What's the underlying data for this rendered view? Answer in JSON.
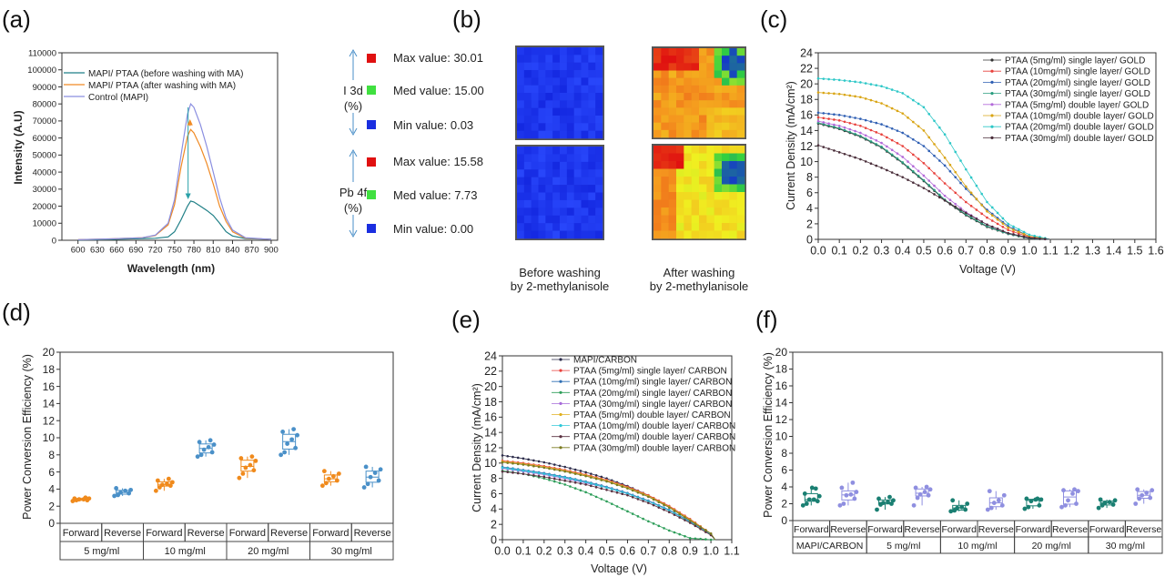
{
  "figure": {
    "panel_labels": [
      "(a)",
      "(b)",
      "(c)",
      "(d)",
      "(e)",
      "(f)"
    ]
  },
  "chart_data": [
    {
      "panel": "(a)",
      "type": "line",
      "xlabel": "Wavelength (nm)",
      "ylabel": "Intensity (A.U)",
      "xlim": [
        575,
        910
      ],
      "ylim": [
        0,
        110000
      ],
      "xticks": [
        600,
        630,
        660,
        690,
        720,
        750,
        780,
        810,
        840,
        870,
        900
      ],
      "yticks": [
        0,
        10000,
        20000,
        30000,
        40000,
        50000,
        60000,
        70000,
        80000,
        90000,
        100000,
        110000
      ],
      "x": [
        600,
        650,
        700,
        720,
        740,
        750,
        760,
        770,
        775,
        780,
        790,
        800,
        810,
        820,
        830,
        840,
        860,
        880,
        900
      ],
      "series": [
        {
          "name": "MAPI/ PTAA (before washing with MA)",
          "color": "#1f7f86",
          "values": [
            200,
            500,
            1000,
            1200,
            2000,
            5000,
            12000,
            20000,
            23000,
            22500,
            20000,
            17500,
            14500,
            10000,
            5000,
            2500,
            1000,
            800,
            600
          ]
        },
        {
          "name": "MAPI/ PTAA (after washing with MA)",
          "color": "#f08a24",
          "values": [
            300,
            800,
            1500,
            2800,
            9000,
            21000,
            43000,
            61000,
            65000,
            63000,
            55000,
            45000,
            33000,
            20000,
            11000,
            5000,
            1300,
            900,
            500
          ]
        },
        {
          "name": "Control (MAPI)",
          "color": "#8a8ee0",
          "values": [
            300,
            800,
            1500,
            3000,
            10000,
            24000,
            50000,
            74000,
            80000,
            78000,
            68000,
            55000,
            40000,
            25000,
            13000,
            6000,
            1500,
            1000,
            500
          ]
        }
      ],
      "legend": "top-left"
    },
    {
      "panel": "(b)",
      "type": "heatmap",
      "groups": [
        {
          "label_line1": "I 3d",
          "label_line2": "(%)",
          "max": "Max value: 30.01",
          "med": "Med value: 15.00",
          "min": "Min value: 0.03"
        },
        {
          "label_line1": "Pb 4f",
          "label_line2": "(%)",
          "max": "Max value: 15.58",
          "med": "Med value: 7.73",
          "min": "Min value: 0.00"
        }
      ],
      "colors": {
        "max": "#e01010",
        "med": "#40e040",
        "min": "#1a2ee0"
      },
      "columns": [
        {
          "line1": "Before washing",
          "line2": "by 2-methylanisole"
        },
        {
          "line1": "After washing",
          "line2": "by 2-methylanisole"
        }
      ]
    },
    {
      "panel": "(c)",
      "type": "line",
      "xlabel": "Voltage (V)",
      "ylabel": "Current Density (mA/cm²)",
      "xlim": [
        0,
        1.6
      ],
      "ylim": [
        0,
        24
      ],
      "xticks": [
        0.0,
        0.1,
        0.2,
        0.3,
        0.4,
        0.5,
        0.6,
        0.7,
        0.8,
        0.9,
        1.0,
        1.1,
        1.2,
        1.3,
        1.4,
        1.5,
        1.6
      ],
      "yticks": [
        0,
        2,
        4,
        6,
        8,
        10,
        12,
        14,
        16,
        18,
        20,
        22,
        24
      ],
      "x": [
        0,
        0.1,
        0.2,
        0.3,
        0.4,
        0.5,
        0.6,
        0.7,
        0.8,
        0.9,
        1.0,
        1.1
      ],
      "series": [
        {
          "name": "PTAA (5mg/ml) single layer/ GOLD",
          "color": "#333333",
          "values": [
            14.9,
            14.2,
            13.2,
            11.8,
            9.8,
            7.5,
            5.0,
            3.1,
            1.6,
            0.7,
            0.1,
            0
          ]
        },
        {
          "name": "PTAA (10mg/ml) single layer/ GOLD",
          "color": "#e8413c",
          "values": [
            15.7,
            15.3,
            14.6,
            13.5,
            12.0,
            9.8,
            7.2,
            4.8,
            2.8,
            1.2,
            0.3,
            0
          ]
        },
        {
          "name": "PTAA (20mg/ml) single layer/ GOLD",
          "color": "#2f5fb3",
          "values": [
            16.3,
            16.0,
            15.5,
            14.8,
            13.7,
            12.0,
            9.5,
            6.5,
            3.8,
            1.7,
            0.4,
            0
          ]
        },
        {
          "name": "PTAA (30mg/ml) single layer/ GOLD",
          "color": "#2a9d7f",
          "values": [
            15.0,
            14.3,
            13.3,
            11.9,
            9.9,
            7.6,
            5.1,
            3.2,
            1.7,
            0.7,
            0.15,
            0
          ]
        },
        {
          "name": "PTAA (5mg/ml) double layer/ GOLD",
          "color": "#b36ad9",
          "values": [
            15.2,
            14.6,
            13.7,
            12.4,
            10.6,
            8.2,
            5.6,
            3.5,
            1.9,
            0.8,
            0.2,
            0
          ]
        },
        {
          "name": "PTAA (10mg/ml) double layer/ GOLD",
          "color": "#d9a514",
          "values": [
            18.9,
            18.7,
            18.3,
            17.5,
            16.2,
            14.0,
            10.5,
            6.8,
            3.6,
            1.5,
            0.4,
            0
          ]
        },
        {
          "name": "PTAA (20mg/ml) double layer/ GOLD",
          "color": "#2cc7c7",
          "values": [
            20.7,
            20.5,
            20.2,
            19.7,
            18.8,
            17.0,
            13.5,
            9.0,
            4.8,
            2.0,
            0.6,
            0
          ]
        },
        {
          "name": "PTAA (30mg/ml) double layer/ GOLD",
          "color": "#4a2e3a",
          "values": [
            12.1,
            11.2,
            10.3,
            9.2,
            8.0,
            6.6,
            5.0,
            3.4,
            1.9,
            0.8,
            0.2,
            0
          ]
        }
      ],
      "legend": "top-right"
    },
    {
      "panel": "(d)",
      "type": "box",
      "ylabel": "Power Conversion Efficiency (%)",
      "ylim": [
        0,
        20
      ],
      "yticks": [
        0,
        2,
        4,
        6,
        8,
        10,
        12,
        14,
        16,
        18,
        20
      ],
      "scan_colors": {
        "Forward": "#f08a1c",
        "Reverse": "#4a90c8"
      },
      "groups": [
        {
          "name": "5 mg/ml",
          "Forward": [
            2.6,
            2.7,
            2.7,
            2.8,
            2.8,
            2.9,
            2.9,
            3.0
          ],
          "Reverse": [
            3.2,
            3.3,
            3.5,
            3.6,
            3.8,
            3.9,
            4.1
          ]
        },
        {
          "name": "10 mg/ml",
          "Forward": [
            3.8,
            4.2,
            4.4,
            4.5,
            4.6,
            4.8,
            5.0,
            5.2
          ],
          "Reverse": [
            7.8,
            8.0,
            8.3,
            8.6,
            8.9,
            9.2,
            9.5,
            9.7
          ]
        },
        {
          "name": "20 mg/ml",
          "Forward": [
            5.3,
            5.8,
            6.2,
            6.5,
            6.8,
            7.3,
            7.6,
            7.8
          ],
          "Reverse": [
            8.0,
            8.3,
            8.8,
            9.3,
            9.8,
            10.3,
            10.7,
            11.0
          ]
        },
        {
          "name": "30 mg/ml",
          "Forward": [
            4.4,
            4.7,
            5.0,
            5.2,
            5.5,
            5.8,
            6.1
          ],
          "Reverse": [
            4.2,
            4.6,
            5.0,
            5.4,
            5.9,
            6.3,
            6.6
          ]
        }
      ],
      "scan_labels": [
        "Forward",
        "Reverse"
      ]
    },
    {
      "panel": "(e)",
      "type": "line",
      "xlabel": "Voltage (V)",
      "ylabel": "Current Density (mA/cm²)",
      "xlim": [
        0,
        1.1
      ],
      "ylim": [
        0,
        24
      ],
      "xticks": [
        0.0,
        0.1,
        0.2,
        0.3,
        0.4,
        0.5,
        0.6,
        0.7,
        0.8,
        0.9,
        1.0,
        1.1
      ],
      "yticks": [
        0,
        2,
        4,
        6,
        8,
        10,
        12,
        14,
        16,
        18,
        20,
        22,
        24
      ],
      "x": [
        0,
        0.1,
        0.2,
        0.3,
        0.4,
        0.5,
        0.6,
        0.7,
        0.8,
        0.9,
        1.0,
        1.02
      ],
      "series": [
        {
          "name": "MAPI/CARBON",
          "color": "#2b2b4a",
          "values": [
            11.0,
            10.6,
            10.1,
            9.5,
            8.8,
            8.0,
            7.0,
            5.8,
            4.3,
            2.6,
            0.8,
            0
          ]
        },
        {
          "name": "PTAA (5mg/ml) single layer/ CARBON",
          "color": "#e8413c",
          "values": [
            10.3,
            10.0,
            9.6,
            9.1,
            8.5,
            7.8,
            6.9,
            5.8,
            4.4,
            2.7,
            0.8,
            0
          ]
        },
        {
          "name": "PTAA (10mg/ml) single layer/ CARBON",
          "color": "#2f6fb3",
          "values": [
            9.5,
            9.1,
            8.7,
            8.2,
            7.6,
            6.9,
            6.1,
            5.1,
            3.9,
            2.4,
            0.7,
            0
          ]
        },
        {
          "name": "PTAA (20mg/ml) single layer/ CARBON",
          "color": "#2e9e5a",
          "values": [
            9.0,
            8.6,
            8.0,
            7.2,
            6.2,
            5.0,
            3.7,
            2.4,
            1.2,
            0.2,
            0,
            0
          ]
        },
        {
          "name": "PTAA (30mg/ml) single layer/ CARBON",
          "color": "#a66ad9",
          "values": [
            9.3,
            8.9,
            8.5,
            8.0,
            7.4,
            6.8,
            6.0,
            5.0,
            3.8,
            2.3,
            0.7,
            0
          ]
        },
        {
          "name": "PTAA (5mg/ml) double layer/ CARBON",
          "color": "#e0b020",
          "values": [
            10.2,
            9.9,
            9.5,
            9.0,
            8.4,
            7.7,
            6.8,
            5.7,
            4.3,
            2.6,
            0.8,
            0
          ]
        },
        {
          "name": "PTAA (10mg/ml) double layer/ CARBON",
          "color": "#30c8d8",
          "values": [
            9.4,
            9.0,
            8.6,
            8.1,
            7.5,
            6.8,
            6.0,
            5.0,
            3.8,
            2.3,
            0.7,
            0
          ]
        },
        {
          "name": "PTAA (20mg/ml) double layer/ CARBON",
          "color": "#5a3040",
          "values": [
            8.9,
            8.6,
            8.2,
            7.7,
            7.2,
            6.5,
            5.8,
            4.8,
            3.6,
            2.2,
            0.6,
            0
          ]
        },
        {
          "name": "PTAA (30mg/ml) double layer/ CARBON",
          "color": "#7a7a20",
          "values": [
            10.1,
            9.8,
            9.4,
            8.9,
            8.3,
            7.6,
            6.7,
            5.6,
            4.2,
            2.5,
            0.8,
            0
          ]
        }
      ],
      "legend": "top"
    },
    {
      "panel": "(f)",
      "type": "box",
      "ylabel": "Power Conversion Efficiency (%)",
      "ylim": [
        0,
        20
      ],
      "yticks": [
        0,
        2,
        4,
        6,
        8,
        10,
        12,
        14,
        16,
        18,
        20
      ],
      "scan_colors": {
        "Forward": "#1a7f72",
        "Reverse": "#8f8fe0"
      },
      "groups": [
        {
          "name": "MAPI/CARBON",
          "Forward": [
            1.8,
            2.0,
            2.3,
            2.5,
            2.5,
            2.9,
            3.2,
            3.8,
            3.9
          ],
          "Reverse": [
            1.8,
            2.0,
            2.6,
            3.0,
            3.1,
            3.4,
            3.9,
            4.5
          ]
        },
        {
          "name": "5 mg/ml",
          "Forward": [
            1.3,
            1.9,
            2.0,
            2.1,
            2.2,
            2.4,
            2.6,
            2.8
          ],
          "Reverse": [
            1.8,
            2.7,
            3.0,
            3.1,
            3.4,
            3.7,
            3.9,
            4.0
          ]
        },
        {
          "name": "10 mg/ml",
          "Forward": [
            1.1,
            1.2,
            1.3,
            1.5,
            1.6,
            2.0,
            2.4
          ],
          "Reverse": [
            1.3,
            1.5,
            1.8,
            2.1,
            2.4,
            3.0,
            3.5
          ]
        },
        {
          "name": "20 mg/ml",
          "Forward": [
            1.4,
            1.6,
            1.8,
            2.3,
            2.5,
            2.5,
            2.6,
            2.6
          ],
          "Reverse": [
            1.6,
            1.8,
            2.0,
            2.4,
            3.2,
            3.5,
            3.6,
            3.7
          ]
        },
        {
          "name": "30 mg/ml",
          "Forward": [
            1.5,
            1.8,
            1.9,
            2.1,
            2.2,
            2.4,
            2.5
          ],
          "Reverse": [
            2.0,
            2.6,
            2.7,
            3.0,
            3.3,
            3.6,
            3.7
          ]
        }
      ],
      "scan_labels": [
        "Forward",
        "Reverse"
      ]
    }
  ]
}
